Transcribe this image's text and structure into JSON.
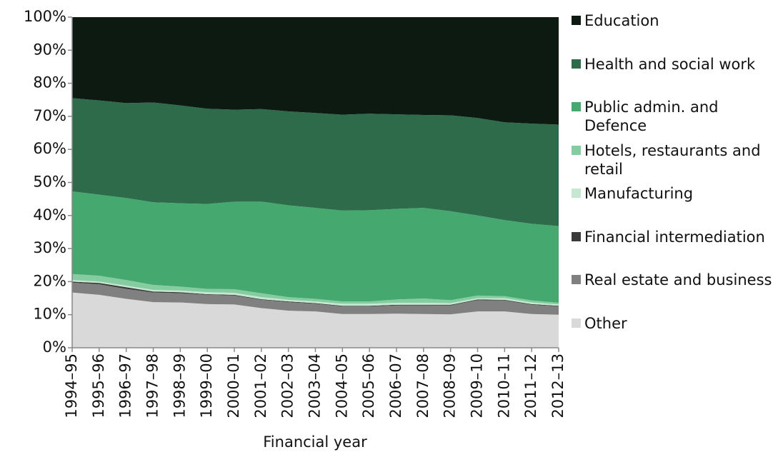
{
  "chart_data": {
    "type": "stacked_area",
    "x_label": "Financial year",
    "categories": [
      "1994–95",
      "1995–96",
      "1996–97",
      "1997–98",
      "1998–99",
      "1999–00",
      "2000–01",
      "2001–02",
      "2002–03",
      "2003–04",
      "2004–05",
      "2005–06",
      "2006–07",
      "2007–08",
      "2008–09",
      "2009–10",
      "2010–11",
      "2011–12",
      "2012–13"
    ],
    "series": [
      {
        "name": "Other",
        "color": "#d9d9d9",
        "values": [
          16.7,
          16,
          14.8,
          13.8,
          13.7,
          13.2,
          13.1,
          12,
          11.2,
          11,
          10.2,
          10.2,
          10.3,
          10.2,
          10.1,
          11,
          11,
          10.2,
          10
        ]
      },
      {
        "name": "Real estate and business",
        "color": "#808080",
        "values": [
          3.0,
          3.2,
          3.0,
          2.9,
          2.8,
          2.8,
          2.7,
          2.5,
          2.6,
          2.3,
          2.3,
          2.3,
          2.5,
          2.6,
          2.7,
          3.4,
          3.3,
          2.8,
          2.5
        ]
      },
      {
        "name": "Financial intermediation",
        "color": "#3a3a3a",
        "values": [
          0.3,
          0.4,
          0.5,
          0.3,
          0.3,
          0.2,
          0.2,
          0.2,
          0.2,
          0.2,
          0.2,
          0.2,
          0.2,
          0.2,
          0.2,
          0.2,
          0.2,
          0.2,
          0.2
        ]
      },
      {
        "name": "Manufacturing",
        "color": "#c4e8d2",
        "values": [
          0.5,
          0.4,
          0.5,
          0.5,
          0.5,
          0.6,
          0.6,
          0.6,
          0.5,
          0.5,
          0.6,
          0.6,
          0.6,
          0.6,
          0.5,
          0.4,
          0.5,
          0.5,
          0.4
        ]
      },
      {
        "name": "Hotels, restaurants and retail",
        "color": "#85cca0",
        "values": [
          1.8,
          1.8,
          1.7,
          1.5,
          1.2,
          1.0,
          1.1,
          1.2,
          0.8,
          0.8,
          0.7,
          0.7,
          1.0,
          1.3,
          0.9,
          0.8,
          0.6,
          0.6,
          0.5
        ]
      },
      {
        "name": "Public admin. and Defence",
        "color": "#45a86e",
        "values": [
          25.0,
          24.5,
          24.8,
          25.0,
          25.2,
          25.7,
          26.5,
          27.7,
          27.8,
          27.5,
          27.5,
          27.6,
          27.4,
          27.4,
          26.9,
          24.2,
          23.0,
          23.2,
          23.2
        ]
      },
      {
        "name": "Health and social work",
        "color": "#2d6b4a",
        "values": [
          28.2,
          28.5,
          28.7,
          30.2,
          29.6,
          28.8,
          27.8,
          28.0,
          28.4,
          28.7,
          29.0,
          29.2,
          28.6,
          28.1,
          29.0,
          29.5,
          29.6,
          30.3,
          30.7
        ]
      },
      {
        "name": "Education",
        "color": "#0d1a12",
        "values": [
          24.5,
          25.2,
          26,
          25.8,
          26.7,
          27.7,
          28,
          27.8,
          28.5,
          29,
          29.5,
          29.2,
          29.4,
          29.6,
          29.7,
          30.5,
          31.8,
          32.2,
          32.5
        ]
      }
    ],
    "ylim": [
      0,
      100
    ],
    "yticks": [
      {
        "value": 0,
        "label": "0%"
      },
      {
        "value": 10,
        "label": "10%"
      },
      {
        "value": 20,
        "label": "20%"
      },
      {
        "value": 30,
        "label": "30%"
      },
      {
        "value": 40,
        "label": "40%"
      },
      {
        "value": 50,
        "label": "50%"
      },
      {
        "value": 60,
        "label": "60%"
      },
      {
        "value": 70,
        "label": "70%"
      },
      {
        "value": 80,
        "label": "80%"
      },
      {
        "value": 90,
        "label": "90%"
      },
      {
        "value": 100,
        "label": "100%"
      }
    ]
  }
}
